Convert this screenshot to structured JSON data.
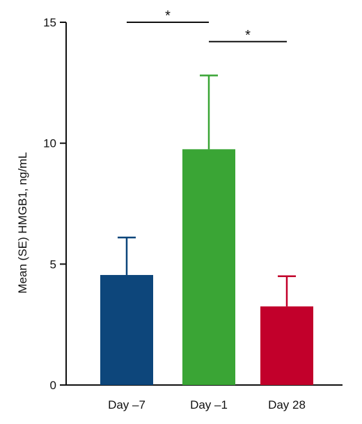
{
  "chart_data": {
    "type": "bar",
    "title": "",
    "xlabel": "",
    "ylabel": "Mean (SE) HMGB1, ng/mL",
    "ylim": [
      0,
      15
    ],
    "yticks": [
      0,
      5,
      10,
      15
    ],
    "categories": [
      "Day –7",
      "Day –1",
      "Day 28"
    ],
    "values": [
      4.55,
      9.75,
      3.25
    ],
    "errors": [
      1.55,
      3.05,
      1.25
    ],
    "error_direction": "upper",
    "colors": [
      "#0d467b",
      "#3aa535",
      "#c2002b"
    ],
    "grid": false,
    "legend": "none",
    "annotations": [
      {
        "text": "*",
        "from": 0,
        "to": 1,
        "y": 15.0
      },
      {
        "text": "*",
        "from": 1,
        "to": 2,
        "y": 14.2
      }
    ]
  }
}
